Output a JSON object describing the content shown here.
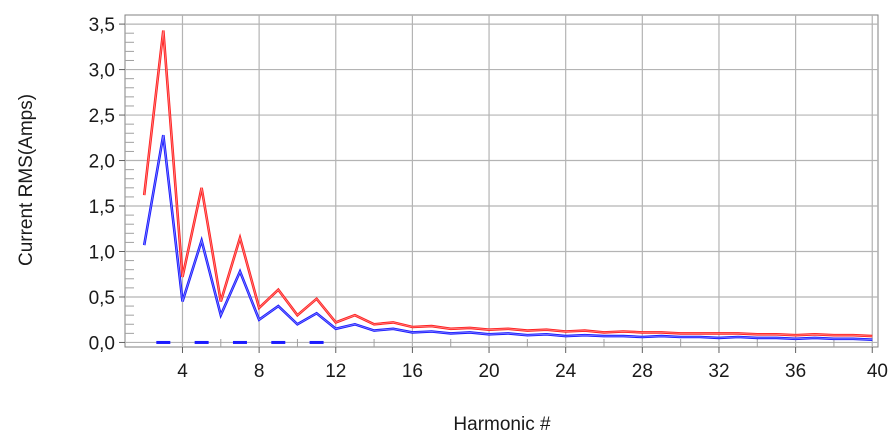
{
  "chart_data": {
    "type": "line",
    "xlabel": "Harmonic #",
    "ylabel": "Current RMS(Amps)",
    "xlim": [
      1,
      40.3
    ],
    "ylim": [
      -0.05,
      3.6
    ],
    "xticks": [
      4,
      8,
      12,
      16,
      20,
      24,
      28,
      32,
      36,
      40
    ],
    "xtick_labels": [
      "4",
      "8",
      "12",
      "16",
      "20",
      "24",
      "28",
      "32",
      "36",
      "40"
    ],
    "yticks": [
      0,
      0.5,
      1.0,
      1.5,
      2.0,
      2.5,
      3.0,
      3.5
    ],
    "ytick_labels": [
      "0,0",
      "0,5",
      "1,0",
      "1,5",
      "2,0",
      "2,5",
      "3,0",
      "3,5"
    ],
    "grid": true,
    "x": [
      2,
      3,
      4,
      5,
      6,
      7,
      8,
      9,
      10,
      11,
      12,
      13,
      14,
      15,
      16,
      17,
      18,
      19,
      20,
      21,
      22,
      23,
      24,
      25,
      26,
      27,
      28,
      29,
      30,
      31,
      32,
      33,
      34,
      35,
      36,
      37,
      38,
      39,
      40
    ],
    "series": [
      {
        "color": "#ff2020",
        "values": [
          1.62,
          3.43,
          0.72,
          1.7,
          0.45,
          1.15,
          0.38,
          0.58,
          0.3,
          0.48,
          0.22,
          0.3,
          0.2,
          0.22,
          0.17,
          0.18,
          0.15,
          0.16,
          0.14,
          0.15,
          0.13,
          0.14,
          0.12,
          0.13,
          0.11,
          0.12,
          0.11,
          0.11,
          0.1,
          0.1,
          0.1,
          0.1,
          0.09,
          0.09,
          0.08,
          0.09,
          0.08,
          0.08,
          0.07
        ]
      },
      {
        "color": "#1a1aff",
        "values": [
          1.07,
          2.28,
          0.45,
          1.12,
          0.3,
          0.78,
          0.25,
          0.4,
          0.2,
          0.32,
          0.15,
          0.2,
          0.13,
          0.15,
          0.11,
          0.12,
          0.1,
          0.11,
          0.09,
          0.1,
          0.08,
          0.09,
          0.07,
          0.08,
          0.07,
          0.07,
          0.06,
          0.07,
          0.06,
          0.06,
          0.05,
          0.06,
          0.05,
          0.05,
          0.04,
          0.05,
          0.04,
          0.04,
          0.03
        ]
      },
      {
        "color": "#1a1aff",
        "style": "dashed",
        "values": [
          null,
          0.0,
          null,
          0.0,
          null,
          0.0,
          null,
          0.0,
          null,
          0.0,
          null,
          null,
          null,
          null,
          null,
          null,
          null,
          null,
          null,
          null,
          null,
          null,
          null,
          null,
          null,
          null,
          null,
          null,
          null,
          null,
          null,
          null,
          null,
          null,
          null,
          null,
          null,
          null,
          null
        ]
      }
    ]
  }
}
